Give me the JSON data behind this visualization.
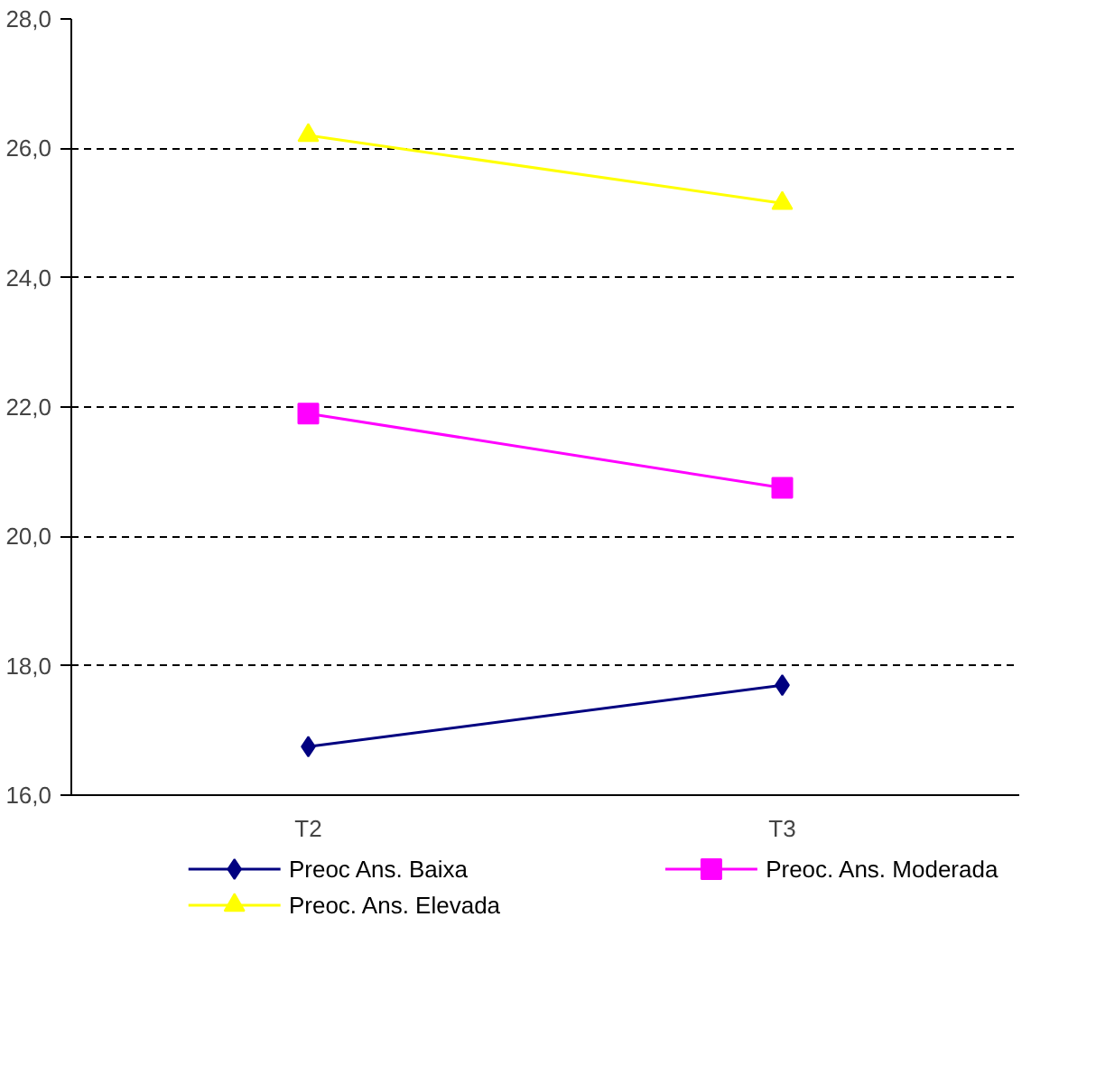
{
  "chart_data": {
    "type": "line",
    "categories": [
      "T2",
      "T3"
    ],
    "series": [
      {
        "name": "Preoc Ans. Baixa",
        "color": "#000080",
        "marker": "diamond",
        "values": [
          16.75,
          17.7
        ]
      },
      {
        "name": "Preoc. Ans. Moderada",
        "color": "#ff00ff",
        "marker": "square",
        "values": [
          21.9,
          20.75
        ]
      },
      {
        "name": "Preoc. Ans. Elevada",
        "color": "#ffff00",
        "marker": "triangle",
        "values": [
          26.2,
          25.15
        ]
      }
    ],
    "ylim": [
      16,
      28
    ],
    "yticks": [
      {
        "value": 16,
        "label": "16,0"
      },
      {
        "value": 18,
        "label": "18,0"
      },
      {
        "value": 20,
        "label": "20,0"
      },
      {
        "value": 22,
        "label": "22,0"
      },
      {
        "value": 24,
        "label": "24,0"
      },
      {
        "value": 26,
        "label": "26,0"
      },
      {
        "value": 28,
        "label": "28,0"
      }
    ],
    "grid": "y",
    "legend": "bottom",
    "line_style": "solid"
  }
}
